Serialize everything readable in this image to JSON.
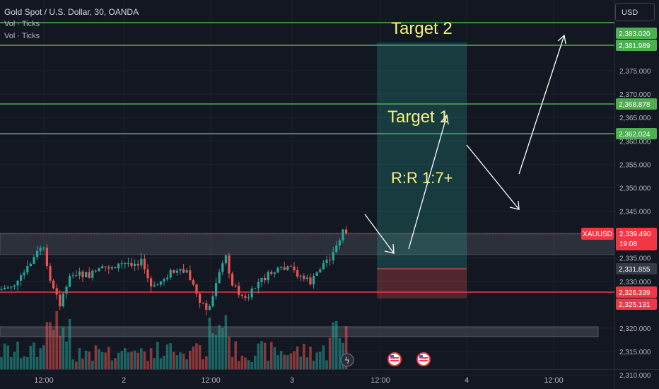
{
  "header": {
    "symbol_line": "Gold Spot / U.S. Dollar, 30, OANDA",
    "indicator_1": "Vol · Ticks",
    "indicator_2": "Vol · Ticks"
  },
  "currency_button": "USD",
  "price_axis": {
    "ticks": [
      "2,375.000",
      "2,370.000",
      "2,365.000",
      "2,360.000",
      "2,355.000",
      "2,350.000",
      "2,345.000",
      "2,340.000",
      "2,335.000",
      "2,330.000",
      "2,320.000",
      "2,315.000",
      "2,310.000"
    ]
  },
  "time_axis": {
    "ticks": [
      "12:00",
      "2",
      "12:00",
      "3",
      "12:00",
      "4",
      "12:00"
    ]
  },
  "price_tags": [
    {
      "value": "2,383.020",
      "color": "#4caf50"
    },
    {
      "value": "2,381.989",
      "color": "#4caf50"
    },
    {
      "value": "2,368.878",
      "color": "#4caf50"
    },
    {
      "value": "2,362.024",
      "color": "#4caf50"
    },
    {
      "value": "2,331.855",
      "color": "#d1d4dc"
    },
    {
      "value": "2,326.339",
      "color": "#f23645"
    },
    {
      "value": "2,325.131",
      "color": "#f23645"
    }
  ],
  "current_price": {
    "symbol": "XAUUSD",
    "value": "2,339.490",
    "countdown": "19:08",
    "color": "#f23645"
  },
  "annotations": {
    "target_1": "Target 1",
    "target_2": "Target 2",
    "rr": "R:R 1:7+"
  },
  "colors": {
    "bg": "#131722",
    "up": "#26a69a",
    "down": "#ef5350",
    "hline_green": "#4caf50",
    "hline_red": "#f23645",
    "text": "#b2b5be",
    "annotation": "#f5f57a"
  }
}
